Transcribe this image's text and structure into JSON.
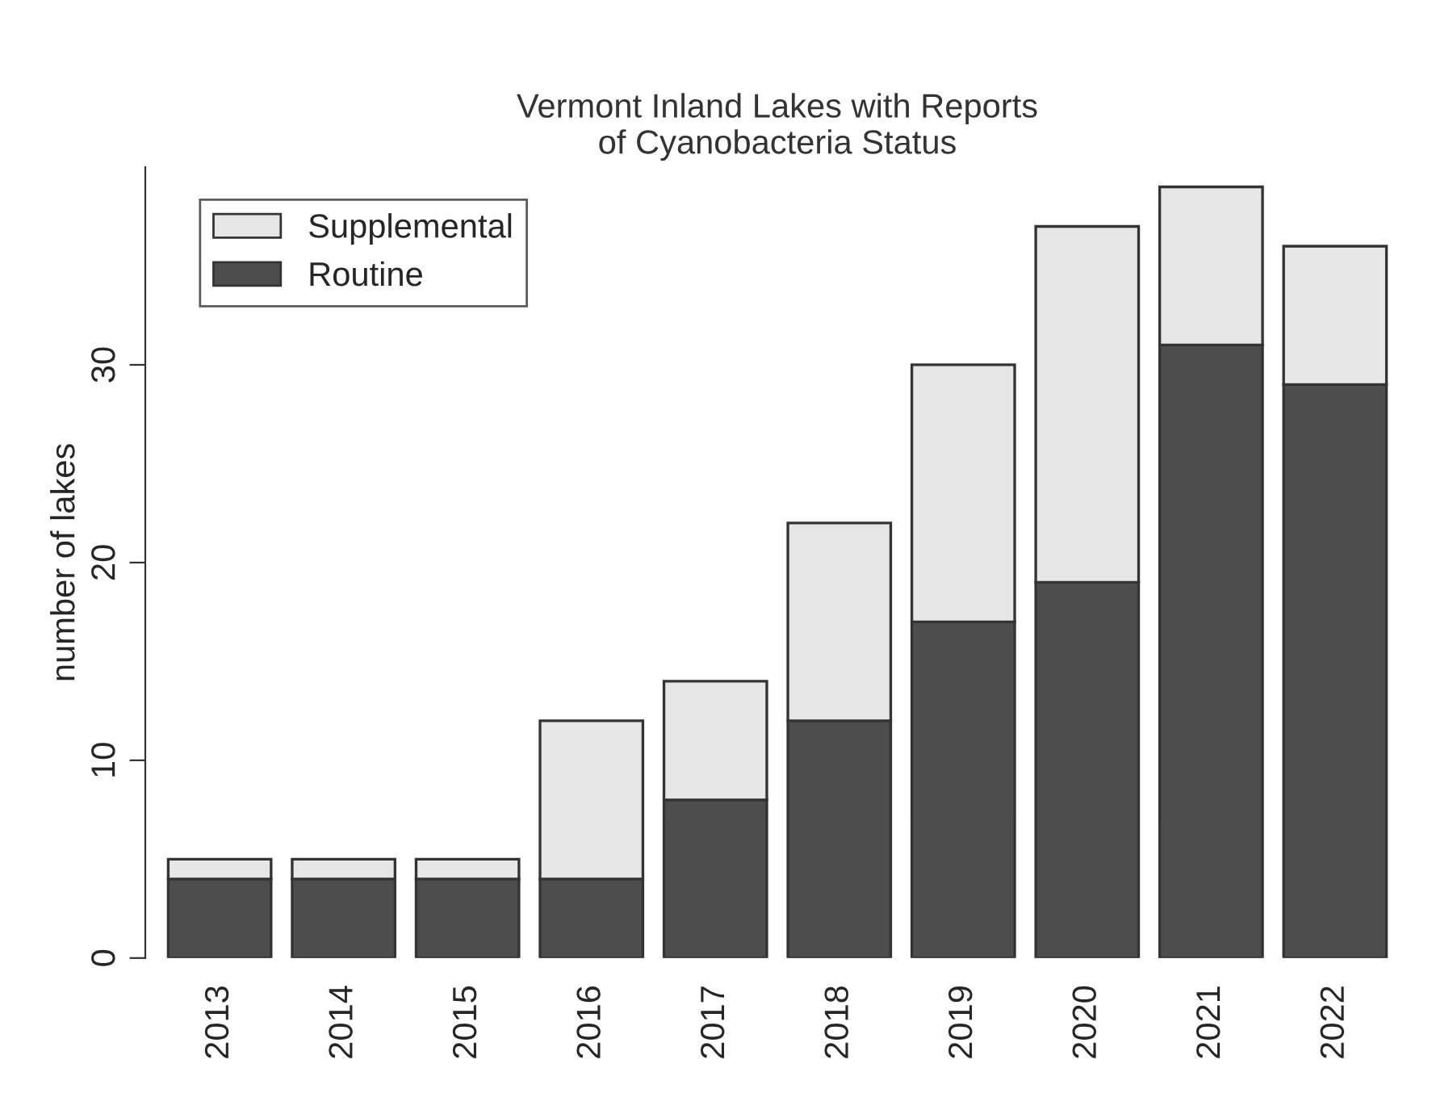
{
  "chart_data": {
    "type": "bar",
    "title": "Vermont Inland Lakes with Reports\nof Cyanobacteria Status",
    "ylabel": "number of lakes",
    "categories": [
      "2013",
      "2014",
      "2015",
      "2016",
      "2017",
      "2018",
      "2019",
      "2020",
      "2021",
      "2022"
    ],
    "stacked": true,
    "series": [
      {
        "name": "Routine",
        "color": "#4d4d4d",
        "values": [
          4,
          4,
          4,
          4,
          8,
          12,
          17,
          19,
          31,
          29
        ]
      },
      {
        "name": "Supplemental",
        "color": "#e6e6e6",
        "values": [
          1,
          1,
          1,
          8,
          6,
          10,
          13,
          18,
          8,
          7
        ]
      }
    ],
    "ylim": [
      0,
      40
    ],
    "yticks": [
      0,
      10,
      20,
      30
    ],
    "grid": false,
    "legend": "top left"
  }
}
